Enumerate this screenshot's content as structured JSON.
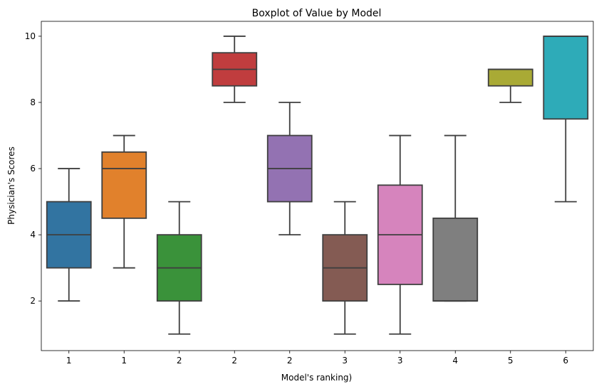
{
  "chart_data": {
    "type": "boxplot",
    "title": "Boxplot of Value by Model",
    "xlabel": "Model's ranking)",
    "ylabel": "Physician's Scores",
    "ylim": [
      0.5,
      10.45
    ],
    "y_ticks": [
      2,
      4,
      6,
      8,
      10
    ],
    "categories": [
      "1",
      "1",
      "2",
      "2",
      "2",
      "3",
      "3",
      "4",
      "5",
      "6"
    ],
    "boxes": [
      {
        "label": "1",
        "color": "#3274a1",
        "whisker_low": 2,
        "q1": 3,
        "median": 4,
        "q3": 5,
        "whisker_high": 6
      },
      {
        "label": "1",
        "color": "#e1812c",
        "whisker_low": 3,
        "q1": 4.5,
        "median": 6,
        "q3": 6.5,
        "whisker_high": 7
      },
      {
        "label": "2",
        "color": "#3a923a",
        "whisker_low": 1,
        "q1": 2,
        "median": 3,
        "q3": 4,
        "whisker_high": 5
      },
      {
        "label": "2",
        "color": "#c03d3e",
        "whisker_low": 8,
        "q1": 8.5,
        "median": 9,
        "q3": 9.5,
        "whisker_high": 10
      },
      {
        "label": "2",
        "color": "#9372b2",
        "whisker_low": 4,
        "q1": 5,
        "median": 6,
        "q3": 7,
        "whisker_high": 8
      },
      {
        "label": "3",
        "color": "#845b53",
        "whisker_low": 1,
        "q1": 2,
        "median": 3,
        "q3": 4,
        "whisker_high": 5
      },
      {
        "label": "3",
        "color": "#d684bd",
        "whisker_low": 1,
        "q1": 2.5,
        "median": 4,
        "q3": 5.5,
        "whisker_high": 7
      },
      {
        "label": "4",
        "color": "#7f7f7f",
        "whisker_low": 2,
        "q1": 2,
        "median": 2,
        "q3": 4.5,
        "whisker_high": 7
      },
      {
        "label": "5",
        "color": "#a9aa35",
        "whisker_low": 8,
        "q1": 8.5,
        "median": 9,
        "q3": 9,
        "whisker_high": 9
      },
      {
        "label": "6",
        "color": "#2eabb8",
        "whisker_low": 5,
        "q1": 7.5,
        "median": 10,
        "q3": 10,
        "whisker_high": 10
      }
    ],
    "grid": false,
    "legend": "none"
  }
}
